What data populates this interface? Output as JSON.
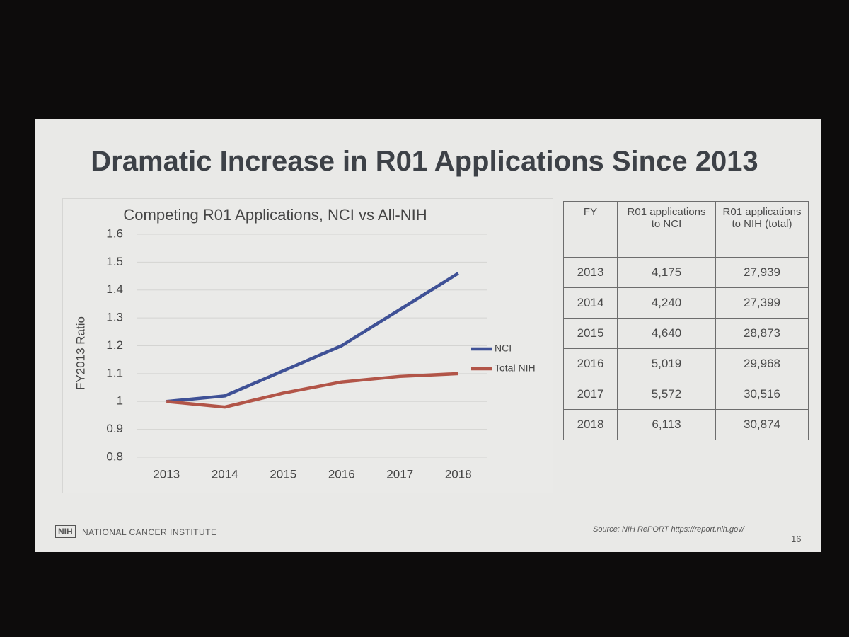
{
  "slide_title": "Dramatic Increase in R01 Applications Since 2013",
  "chart_data": {
    "type": "line",
    "title": "Competing R01 Applications, NCI vs All-NIH",
    "y_label": "FY2013 Ratio",
    "categories": [
      "2013",
      "2014",
      "2015",
      "2016",
      "2017",
      "2018"
    ],
    "series": [
      {
        "name": "NCI",
        "color": "#3f5196",
        "values": [
          1.0,
          1.02,
          1.11,
          1.2,
          1.33,
          1.46
        ]
      },
      {
        "name": "Total NIH",
        "color": "#b25548",
        "values": [
          1.0,
          0.98,
          1.03,
          1.07,
          1.09,
          1.1
        ]
      }
    ],
    "ylim": [
      0.8,
      1.6
    ],
    "yticks": [
      0.8,
      0.9,
      1,
      1.1,
      1.2,
      1.3,
      1.4,
      1.5,
      1.6
    ],
    "grid": true,
    "legend": "right"
  },
  "table": {
    "header": [
      "FY",
      "R01 applications to NCI",
      "R01 applications to NIH (total)"
    ],
    "rows": [
      [
        "2013",
        "4,175",
        "27,939"
      ],
      [
        "2014",
        "4,240",
        "27,399"
      ],
      [
        "2015",
        "4,640",
        "28,873"
      ],
      [
        "2016",
        "5,019",
        "29,968"
      ],
      [
        "2017",
        "5,572",
        "30,516"
      ],
      [
        "2018",
        "6,113",
        "30,874"
      ]
    ]
  },
  "footer": {
    "logo": "NIH",
    "institute": "NATIONAL CANCER INSTITUTE",
    "source": "Source: NIH RePORT https://report.nih.gov/",
    "page": "16"
  }
}
